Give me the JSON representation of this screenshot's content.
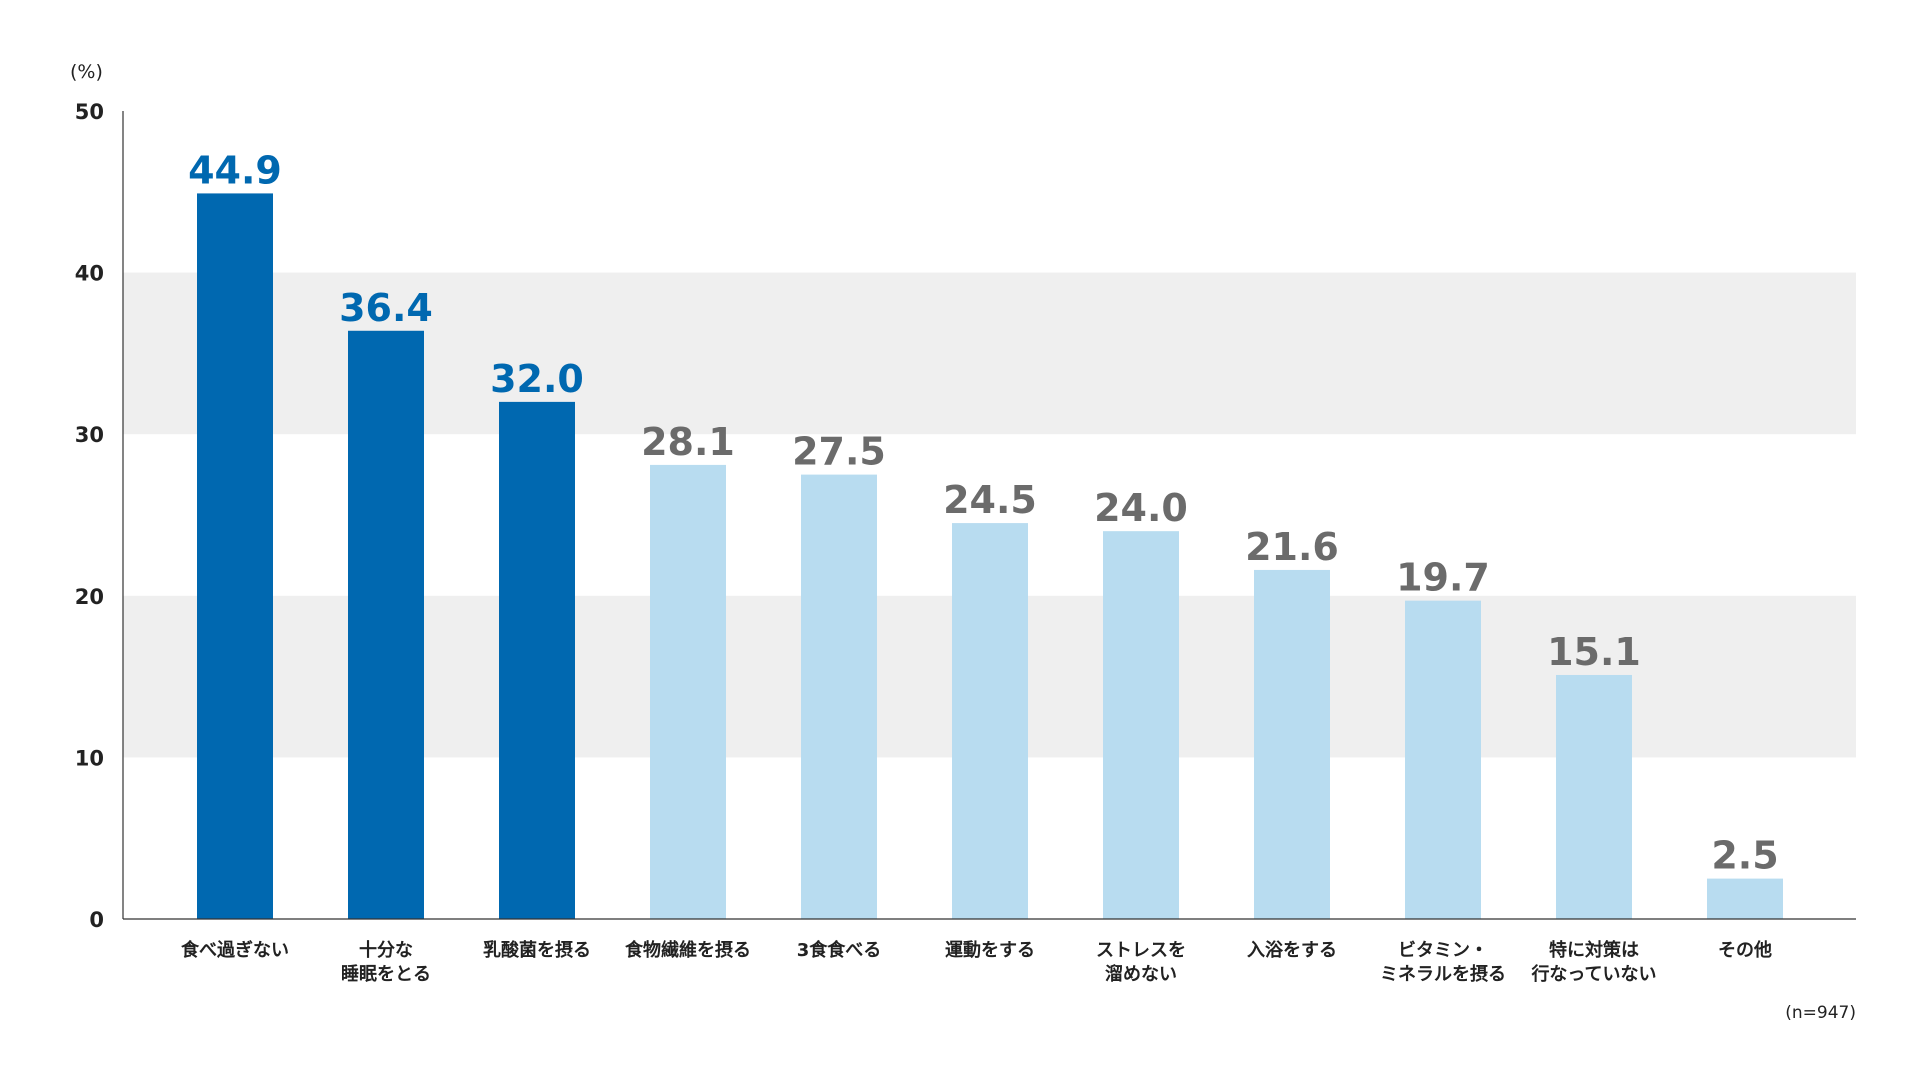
{
  "chart_data": {
    "type": "bar",
    "unit_label": "(%)",
    "note": "(n=947)",
    "ylim": [
      0,
      50
    ],
    "yticks": [
      0,
      10,
      20,
      30,
      40,
      50
    ],
    "grid": "alternating bands",
    "categories": [
      [
        "食べ過ぎない"
      ],
      [
        "十分な",
        "睡眠をとる"
      ],
      [
        "乳酸菌を摂る"
      ],
      [
        "食物繊維を摂る"
      ],
      [
        "3食食べる"
      ],
      [
        "運動をする"
      ],
      [
        "ストレスを",
        "溜めない"
      ],
      [
        "入浴をする"
      ],
      [
        "ビタミン・",
        "ミネラルを摂る"
      ],
      [
        "特に対策は",
        "行なっていない"
      ],
      [
        "その他"
      ]
    ],
    "values": [
      44.9,
      36.4,
      32.0,
      28.1,
      27.5,
      24.5,
      24.0,
      21.6,
      19.7,
      15.1,
      2.5
    ],
    "value_labels": [
      "44.9",
      "36.4",
      "32.0",
      "28.1",
      "27.5",
      "24.5",
      "24.0",
      "21.6",
      "19.7",
      "15.1",
      "2.5"
    ],
    "highlight_count": 3,
    "colors": {
      "highlight_bar": "#0068b0",
      "highlight_label": "#0068b0",
      "normal_bar": "#b8dcf0",
      "normal_label": "#6b6b6b",
      "band": "#efefef",
      "axis": "#333333"
    }
  }
}
